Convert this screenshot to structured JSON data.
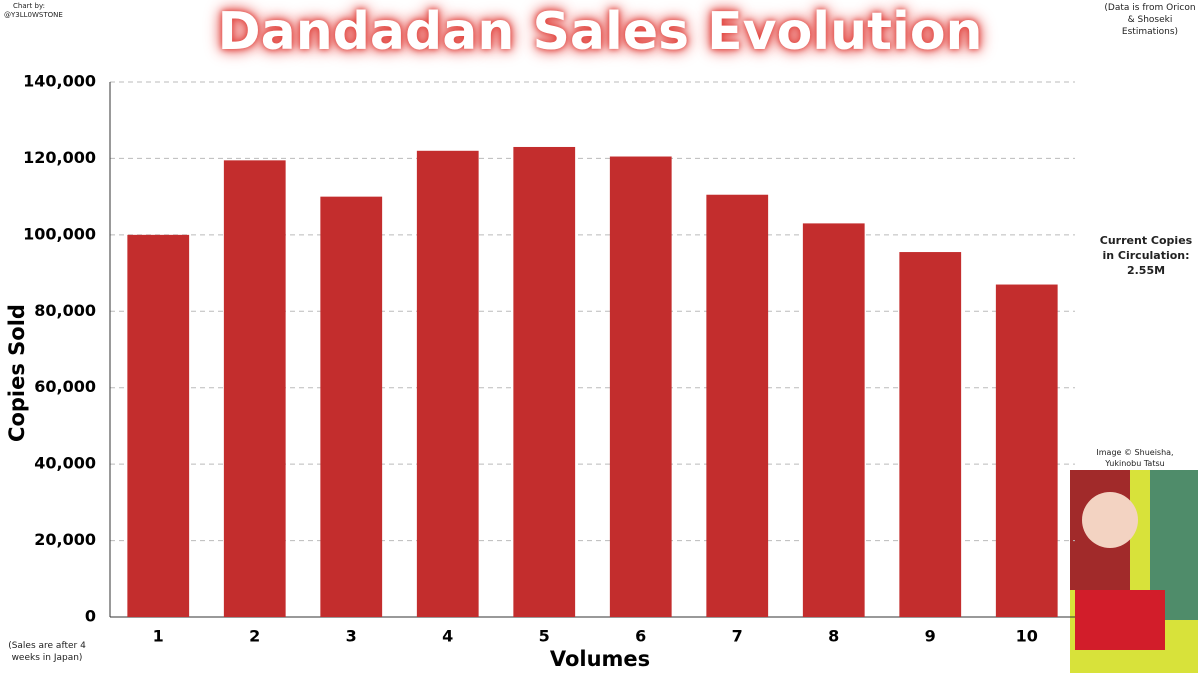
{
  "chart_data": {
    "type": "bar",
    "title": "Dandadan Sales Evolution",
    "x_label": "Volumes",
    "y_label": "Copies Sold",
    "credit": [
      "Chart by:",
      "@Y3LL0WSTONE"
    ],
    "source_note": "(Data is from Oricon & Shoseki Estimations)",
    "circulation_note": "Current Copies in Circulation: 2.55M",
    "image_credit": "Image © Shueisha, Yukinobu Tatsu",
    "sales_note": "(Sales are after 4 weeks in Japan)",
    "categories": [
      "1",
      "2",
      "3",
      "4",
      "5",
      "6",
      "7",
      "8",
      "9",
      "10"
    ],
    "values": [
      100000,
      119500,
      110000,
      122000,
      123000,
      120500,
      110500,
      103000,
      95500,
      87000
    ],
    "color": "#c32d2d",
    "ylim": [
      0,
      140000
    ],
    "yticks": [
      0,
      {
        "value": 20000,
        "label": "20,000"
      },
      {
        "value": 40000,
        "label": "40,000"
      },
      {
        "value": 60000,
        "label": "60,000"
      },
      {
        "value": 80000,
        "label": "80,000"
      },
      {
        "value": 100000,
        "label": "100,000"
      },
      {
        "value": 120000,
        "label": "120,000"
      },
      {
        "value": 140000,
        "label": "140,000"
      }
    ],
    "grid": true
  }
}
